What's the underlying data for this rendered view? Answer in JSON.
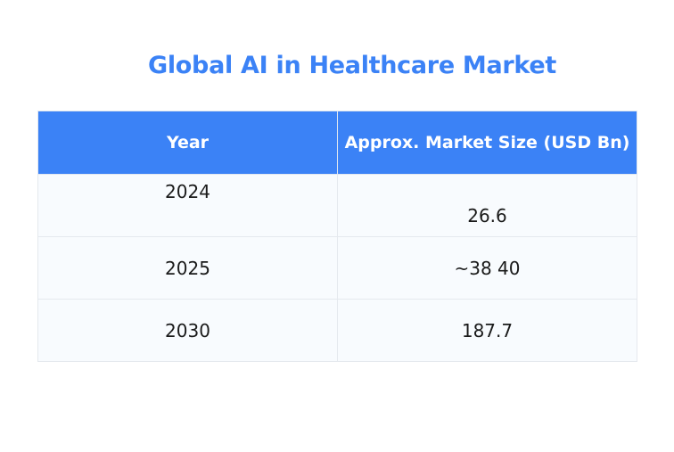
{
  "colors": {
    "accent": "#3b82f6",
    "header_text": "#ffffff",
    "row_background": "#f8fbfe",
    "border": "#e5e9ee",
    "body_text": "#1a1a1a"
  },
  "chart_data": {
    "type": "table",
    "title": "Global AI in Healthcare Market",
    "columns": [
      "Year",
      "Approx. Market Size (USD Bn)"
    ],
    "rows": [
      [
        "2024",
        "26.6"
      ],
      [
        "2025",
        "~38 40"
      ],
      [
        "2030",
        "187.7"
      ]
    ]
  }
}
